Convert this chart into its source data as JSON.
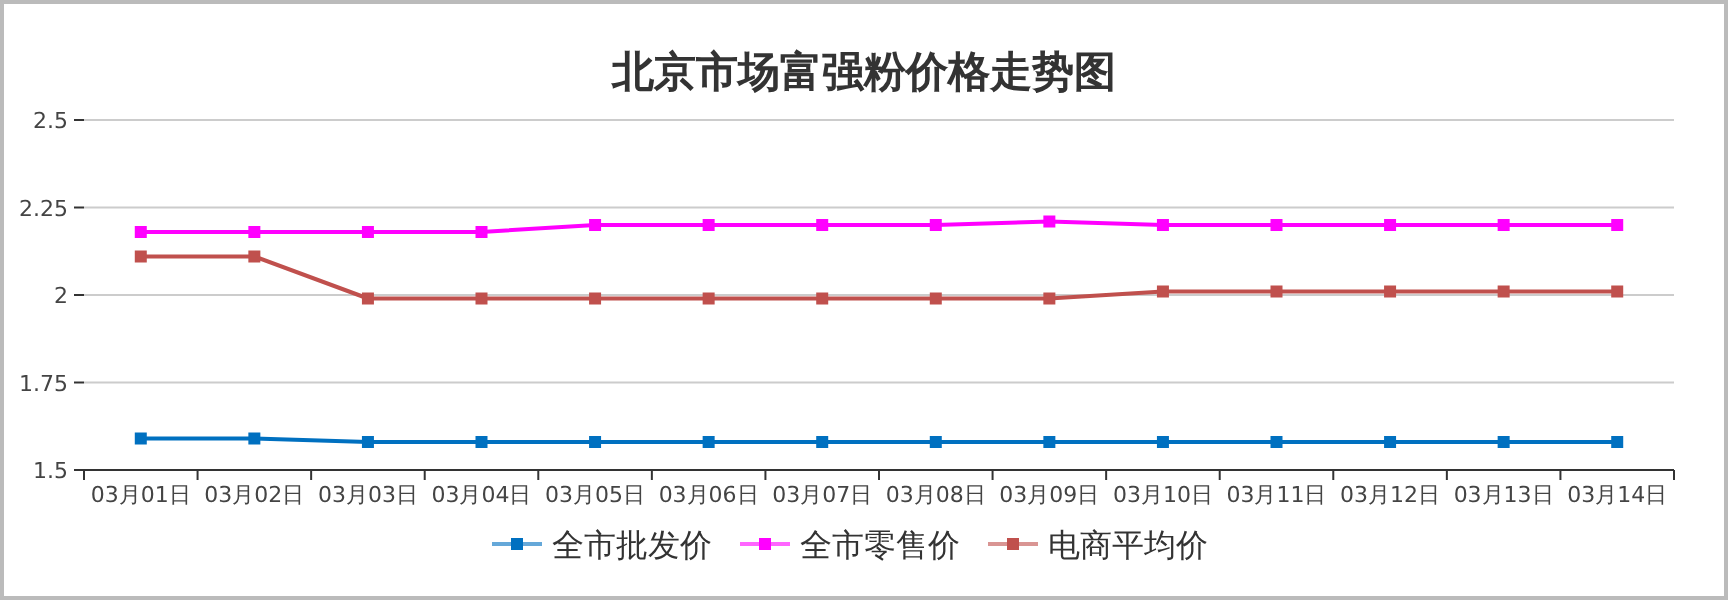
{
  "chart_data": {
    "type": "line",
    "title": "北京市场富强粉价格走势图",
    "categories": [
      "03月01日",
      "03月02日",
      "03月03日",
      "03月04日",
      "03月05日",
      "03月06日",
      "03月07日",
      "03月08日",
      "03月09日",
      "03月10日",
      "03月11日",
      "03月12日",
      "03月13日",
      "03月14日"
    ],
    "series": [
      {
        "name": "全市批发价",
        "color": "#0070c0",
        "values": [
          1.59,
          1.59,
          1.58,
          1.58,
          1.58,
          1.58,
          1.58,
          1.58,
          1.58,
          1.58,
          1.58,
          1.58,
          1.58,
          1.58
        ]
      },
      {
        "name": "全市零售价",
        "color": "#ff00ff",
        "values": [
          2.18,
          2.18,
          2.18,
          2.18,
          2.2,
          2.2,
          2.2,
          2.2,
          2.21,
          2.2,
          2.2,
          2.2,
          2.2,
          2.2
        ]
      },
      {
        "name": "电商平均价",
        "color": "#c0504d",
        "values": [
          2.11,
          2.11,
          1.99,
          1.99,
          1.99,
          1.99,
          1.99,
          1.99,
          1.99,
          2.01,
          2.01,
          2.01,
          2.01,
          2.01
        ]
      }
    ],
    "ylim": [
      1.5,
      2.5
    ],
    "yticks": [
      1.5,
      1.75,
      2,
      2.25,
      2.5
    ],
    "grid": "y",
    "legend": "bottom",
    "marker": "square",
    "line_style": "solid"
  }
}
